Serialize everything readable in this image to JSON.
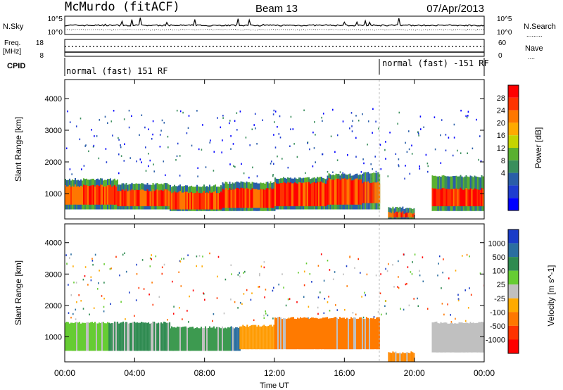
{
  "header": {
    "station": "McMurdo (fitACF)",
    "beam": "Beam 13",
    "date": "07/Apr/2013"
  },
  "noise_panel": {
    "left_label": "N.Sky",
    "right_label": "N.Search",
    "right_legend_line": ".........",
    "ticks": [
      "10^5",
      "10^0"
    ]
  },
  "freq_panel": {
    "left_label_1": "Freq.",
    "left_label_2": "[MHz]",
    "left_ticks": [
      "18",
      "8"
    ],
    "right_label": "Nave",
    "right_legend_line": "....",
    "right_ticks": [
      "60",
      "0"
    ]
  },
  "cpid_panel": {
    "label": "CPID",
    "segments": [
      {
        "text": "normal (fast) 151 RF",
        "start_hour": 0
      },
      {
        "text": "normal (fast) -151 RF",
        "start_hour": 18.0
      }
    ]
  },
  "time_axis": {
    "label": "Time UT",
    "ticks": [
      "00:00",
      "04:00",
      "08:00",
      "12:00",
      "16:00",
      "20:00",
      "00:00"
    ]
  },
  "chart_data": [
    {
      "type": "heatmap",
      "quantity": "Power",
      "colorbar_title": "Power [dB]",
      "ylabel": "Slant Range [km]",
      "xlabel": "Time UT",
      "xlim_hours": [
        0,
        24
      ],
      "ylim_km": [
        200,
        4600
      ],
      "y_ticks": [
        "1000",
        "2000",
        "3000",
        "4000"
      ],
      "colorbar_ticks": [
        "28",
        "24",
        "20",
        "16",
        "12",
        "8",
        "4"
      ],
      "colorbar_colors": [
        "#ff0000",
        "#ff3300",
        "#ff7700",
        "#ffaa00",
        "#c4d400",
        "#5ab030",
        "#3a8e5c",
        "#2a5ea8",
        "#1e3cd0",
        "#0000ff"
      ],
      "scatter_band_km": [
        2000,
        3500
      ],
      "main_echo_bands": [
        {
          "from_hour": 0.0,
          "to_hour": 3.0,
          "inner_km": [
            650,
            1250
          ],
          "outer_km": [
            500,
            1450
          ]
        },
        {
          "from_hour": 3.0,
          "to_hour": 6.0,
          "inner_km": [
            600,
            1100
          ],
          "outer_km": [
            500,
            1300
          ]
        },
        {
          "from_hour": 6.0,
          "to_hour": 9.0,
          "inner_km": [
            500,
            1050
          ],
          "outer_km": [
            450,
            1250
          ]
        },
        {
          "from_hour": 9.0,
          "to_hour": 12.0,
          "inner_km": [
            550,
            1150
          ],
          "outer_km": [
            450,
            1350
          ]
        },
        {
          "from_hour": 12.0,
          "to_hour": 15.0,
          "inner_km": [
            600,
            1350
          ],
          "outer_km": [
            500,
            1500
          ]
        },
        {
          "from_hour": 15.0,
          "to_hour": 17.0,
          "inner_km": [
            650,
            1450
          ],
          "outer_km": [
            500,
            1600
          ]
        },
        {
          "from_hour": 17.0,
          "to_hour": 18.0,
          "inner_km": [
            700,
            1350
          ],
          "outer_km": [
            500,
            1650
          ]
        },
        {
          "from_hour": 18.5,
          "to_hour": 20.0,
          "inner_km": [
            250,
            400
          ],
          "outer_km": [
            200,
            550
          ]
        },
        {
          "from_hour": 21.0,
          "to_hour": 24.0,
          "inner_km": [
            600,
            1150
          ],
          "outer_km": [
            450,
            1550
          ]
        }
      ]
    },
    {
      "type": "heatmap",
      "quantity": "Velocity",
      "colorbar_title": "Velocity [m s^-1]",
      "ylabel": "Slant Range [km]",
      "xlabel": "Time UT",
      "xlim_hours": [
        0,
        24
      ],
      "ylim_km": [
        200,
        4600
      ],
      "y_ticks": [
        "1000",
        "2000",
        "3000",
        "4000"
      ],
      "colorbar_ticks": [
        "1000",
        "500",
        "100",
        "25",
        "-25",
        "-100",
        "-500",
        "-1000"
      ],
      "colorbar_colors": [
        "#1a3cc8",
        "#2a6ea0",
        "#2e8a50",
        "#66cc33",
        "#c0c0c0",
        "#ffaa00",
        "#ff7700",
        "#ff3300",
        "#ff0000"
      ],
      "velocity_blocks": [
        {
          "from_hour": 0.0,
          "to_hour": 2.5,
          "km": [
            550,
            1450
          ],
          "color": "#66cc33"
        },
        {
          "from_hour": 2.5,
          "to_hour": 6.0,
          "km": [
            550,
            1450
          ],
          "color": "#2e8a50"
        },
        {
          "from_hour": 6.0,
          "to_hour": 9.5,
          "km": [
            550,
            1300
          ],
          "color": "#3d9a50"
        },
        {
          "from_hour": 9.5,
          "to_hour": 10.0,
          "km": [
            550,
            1300
          ],
          "color": "#2a6ea0"
        },
        {
          "from_hour": 10.0,
          "to_hour": 12.0,
          "km": [
            600,
            1350
          ],
          "color": "#ff9a00"
        },
        {
          "from_hour": 12.0,
          "to_hour": 18.0,
          "km": [
            600,
            1600
          ],
          "color": "#ff7a00"
        },
        {
          "from_hour": 18.5,
          "to_hour": 20.0,
          "km": [
            200,
            500
          ],
          "color": "#ff8800"
        },
        {
          "from_hour": 21.0,
          "to_hour": 24.0,
          "km": [
            500,
            1450
          ],
          "color": "#c0c0c0"
        }
      ]
    }
  ]
}
